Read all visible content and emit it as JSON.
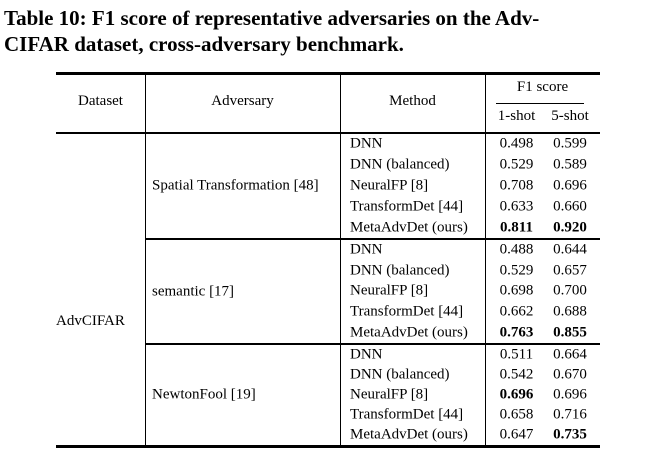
{
  "title": {
    "line1": "Table 10: F1 score of representative adversaries on the Adv-",
    "line2": "CIFAR dataset, cross-adversary benchmark."
  },
  "table": {
    "headers": {
      "dataset": "Dataset",
      "adversary": "Adversary",
      "method": "Method",
      "f1_group": "F1 score",
      "shot1": "1-shot",
      "shot5": "5-shot"
    },
    "dataset_label": "AdvCIFAR",
    "blocks": [
      {
        "adversary": "Spatial Transformation [48]",
        "rows": [
          {
            "method": "DNN",
            "s1": "0.498",
            "s5": "0.599",
            "b1": false,
            "b5": false
          },
          {
            "method": "DNN (balanced)",
            "s1": "0.529",
            "s5": "0.589",
            "b1": false,
            "b5": false
          },
          {
            "method": "NeuralFP [8]",
            "s1": "0.708",
            "s5": "0.696",
            "b1": false,
            "b5": false
          },
          {
            "method": "TransformDet [44]",
            "s1": "0.633",
            "s5": "0.660",
            "b1": false,
            "b5": false
          },
          {
            "method": "MetaAdvDet (ours)",
            "s1": "0.811",
            "s5": "0.920",
            "b1": true,
            "b5": true
          }
        ]
      },
      {
        "adversary": "semantic [17]",
        "rows": [
          {
            "method": "DNN",
            "s1": "0.488",
            "s5": "0.644",
            "b1": false,
            "b5": false
          },
          {
            "method": "DNN (balanced)",
            "s1": "0.529",
            "s5": "0.657",
            "b1": false,
            "b5": false
          },
          {
            "method": "NeuralFP [8]",
            "s1": "0.698",
            "s5": "0.700",
            "b1": false,
            "b5": false
          },
          {
            "method": "TransformDet [44]",
            "s1": "0.662",
            "s5": "0.688",
            "b1": false,
            "b5": false
          },
          {
            "method": "MetaAdvDet (ours)",
            "s1": "0.763",
            "s5": "0.855",
            "b1": true,
            "b5": true
          }
        ]
      },
      {
        "adversary": "NewtonFool [19]",
        "rows": [
          {
            "method": "DNN",
            "s1": "0.511",
            "s5": "0.664",
            "b1": false,
            "b5": false
          },
          {
            "method": "DNN (balanced)",
            "s1": "0.542",
            "s5": "0.670",
            "b1": false,
            "b5": false
          },
          {
            "method": "NeuralFP [8]",
            "s1": "0.696",
            "s5": "0.696",
            "b1": true,
            "b5": false
          },
          {
            "method": "TransformDet [44]",
            "s1": "0.658",
            "s5": "0.716",
            "b1": false,
            "b5": false
          },
          {
            "method": "MetaAdvDet (ours)",
            "s1": "0.647",
            "s5": "0.735",
            "b1": false,
            "b5": true
          }
        ]
      }
    ]
  },
  "colors": {
    "text": "#000000",
    "rule": "#000000",
    "background": "#ffffff"
  }
}
